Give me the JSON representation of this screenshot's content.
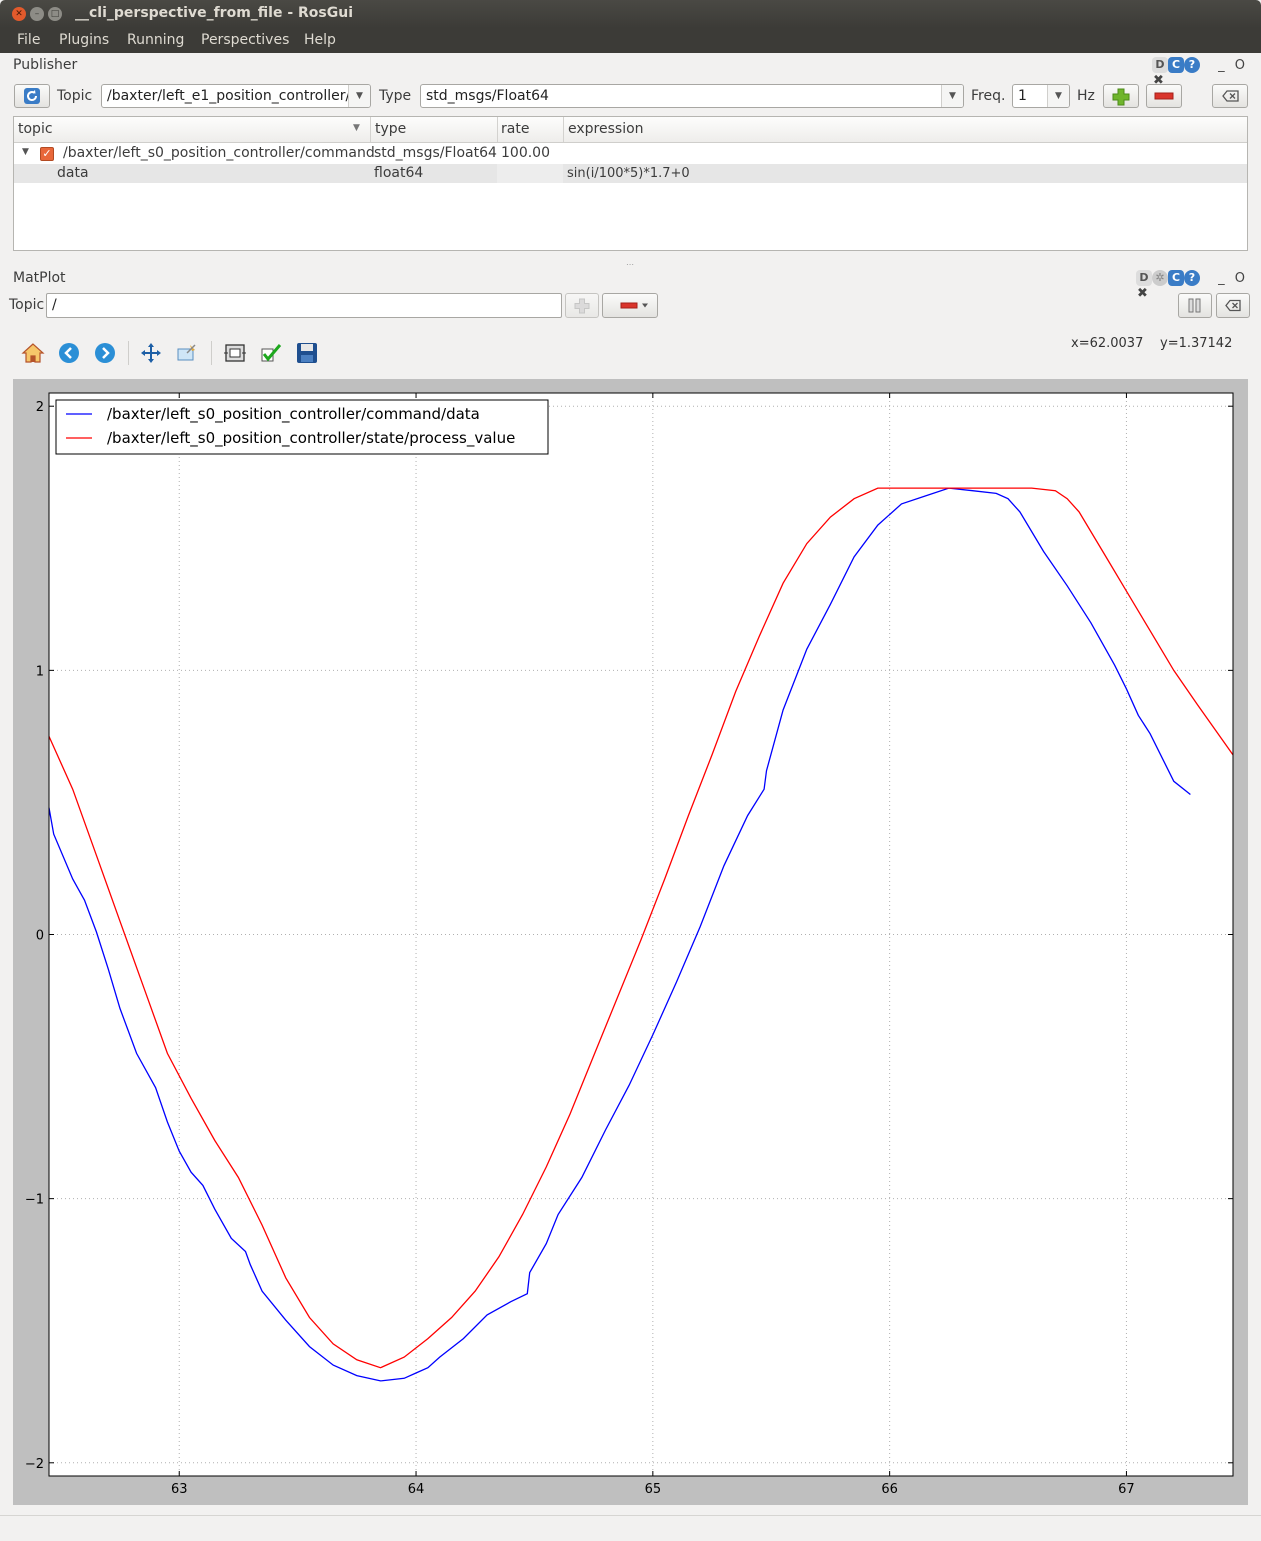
{
  "window": {
    "title": "__cli_perspective_from_file - RosGui"
  },
  "menu": [
    "File",
    "Plugins",
    "Running",
    "Perspectives",
    "Help"
  ],
  "publisher": {
    "dock_title": "Publisher",
    "topic_label": "Topic",
    "topic_value": "/baxter/left_e1_position_controller/",
    "type_label": "Type",
    "type_value": "std_msgs/Float64",
    "freq_label": "Freq.",
    "freq_value": "1",
    "hz_label": "Hz",
    "columns": [
      "topic",
      "type",
      "rate",
      "expression"
    ],
    "rows": [
      {
        "topic": "/baxter/left_s0_position_controller/command",
        "type": "std_msgs/Float64",
        "rate": "100.00",
        "expression": ""
      },
      {
        "topic": "data",
        "type": "float64",
        "rate": "",
        "expression": "sin(i/100*5)*1.7+0"
      }
    ]
  },
  "matplot": {
    "dock_title": "MatPlot",
    "topic_label": "Topic",
    "topic_value": "/",
    "coords_x": "x=62.0037",
    "coords_y": "y=1.37142"
  },
  "icons": [
    "refresh-icon",
    "add-icon",
    "remove-icon",
    "clear-icon",
    "home-icon",
    "back-icon",
    "forward-icon",
    "pan-icon",
    "zoom-icon",
    "subplots-icon",
    "edit-icon",
    "save-icon",
    "pause-icon"
  ],
  "colors": {
    "series_command": "#0000ff",
    "series_state": "#ff0000"
  },
  "chart_data": {
    "type": "line",
    "title": "",
    "xlabel": "",
    "ylabel": "",
    "xlim": [
      62.45,
      67.45
    ],
    "ylim": [
      -2.05,
      2.05
    ],
    "xticks": [
      "63",
      "64",
      "65",
      "66",
      "67"
    ],
    "yticks": [
      "2",
      "1",
      "0",
      "−1",
      "−2"
    ],
    "grid": true,
    "legend_position": "upper-left",
    "series": [
      {
        "name": "/baxter/left_s0_position_controller/command/data",
        "color": "#0000ff",
        "x": [
          62.45,
          62.47,
          62.55,
          62.6,
          62.65,
          62.7,
          62.75,
          62.82,
          62.9,
          62.95,
          63.0,
          63.05,
          63.1,
          63.15,
          63.22,
          63.28,
          63.3,
          63.35,
          63.45,
          63.55,
          63.65,
          63.75,
          63.85,
          63.95,
          64.0,
          64.05,
          64.1,
          64.2,
          64.3,
          64.4,
          64.47,
          64.48,
          64.55,
          64.6,
          64.7,
          64.8,
          64.9,
          65.0,
          65.1,
          65.2,
          65.3,
          65.4,
          65.47,
          65.48,
          65.55,
          65.65,
          65.75,
          65.85,
          65.95,
          66.05,
          66.15,
          66.25,
          66.35,
          66.45,
          66.5,
          66.55,
          66.65,
          66.75,
          66.85,
          66.95,
          67.0,
          67.05,
          67.1,
          67.2,
          67.27
        ],
        "y": [
          0.48,
          0.38,
          0.21,
          0.13,
          0.01,
          -0.13,
          -0.28,
          -0.45,
          -0.58,
          -0.71,
          -0.82,
          -0.9,
          -0.95,
          -1.04,
          -1.15,
          -1.2,
          -1.25,
          -1.35,
          -1.46,
          -1.56,
          -1.63,
          -1.67,
          -1.69,
          -1.68,
          -1.66,
          -1.64,
          -1.6,
          -1.53,
          -1.44,
          -1.39,
          -1.36,
          -1.28,
          -1.17,
          -1.06,
          -0.92,
          -0.74,
          -0.57,
          -0.38,
          -0.18,
          0.03,
          0.26,
          0.45,
          0.55,
          0.62,
          0.85,
          1.08,
          1.25,
          1.43,
          1.55,
          1.63,
          1.66,
          1.69,
          1.68,
          1.67,
          1.65,
          1.6,
          1.45,
          1.32,
          1.18,
          1.02,
          0.93,
          0.83,
          0.76,
          0.58,
          0.53
        ]
      },
      {
        "name": "/baxter/left_s0_position_controller/state/process_value",
        "color": "#ff0000",
        "x": [
          62.45,
          62.55,
          62.65,
          62.75,
          62.85,
          62.95,
          63.05,
          63.15,
          63.25,
          63.35,
          63.45,
          63.55,
          63.65,
          63.75,
          63.85,
          63.95,
          64.05,
          64.15,
          64.25,
          64.35,
          64.45,
          64.55,
          64.65,
          64.75,
          64.85,
          64.95,
          65.05,
          65.15,
          65.25,
          65.35,
          65.45,
          65.55,
          65.65,
          65.75,
          65.85,
          65.95,
          66.05,
          66.15,
          66.2,
          66.3,
          66.4,
          66.5,
          66.6,
          66.7,
          66.75,
          66.8,
          66.9,
          67.0,
          67.1,
          67.2,
          67.3,
          67.45
        ],
        "y": [
          0.75,
          0.55,
          0.3,
          0.05,
          -0.2,
          -0.45,
          -0.62,
          -0.78,
          -0.92,
          -1.1,
          -1.3,
          -1.45,
          -1.55,
          -1.61,
          -1.64,
          -1.6,
          -1.53,
          -1.45,
          -1.35,
          -1.22,
          -1.06,
          -0.88,
          -0.68,
          -0.46,
          -0.24,
          -0.02,
          0.21,
          0.45,
          0.68,
          0.92,
          1.13,
          1.33,
          1.48,
          1.58,
          1.65,
          1.69,
          1.69,
          1.69,
          1.69,
          1.69,
          1.69,
          1.69,
          1.69,
          1.68,
          1.65,
          1.6,
          1.45,
          1.3,
          1.15,
          1.0,
          0.87,
          0.68
        ]
      }
    ]
  }
}
